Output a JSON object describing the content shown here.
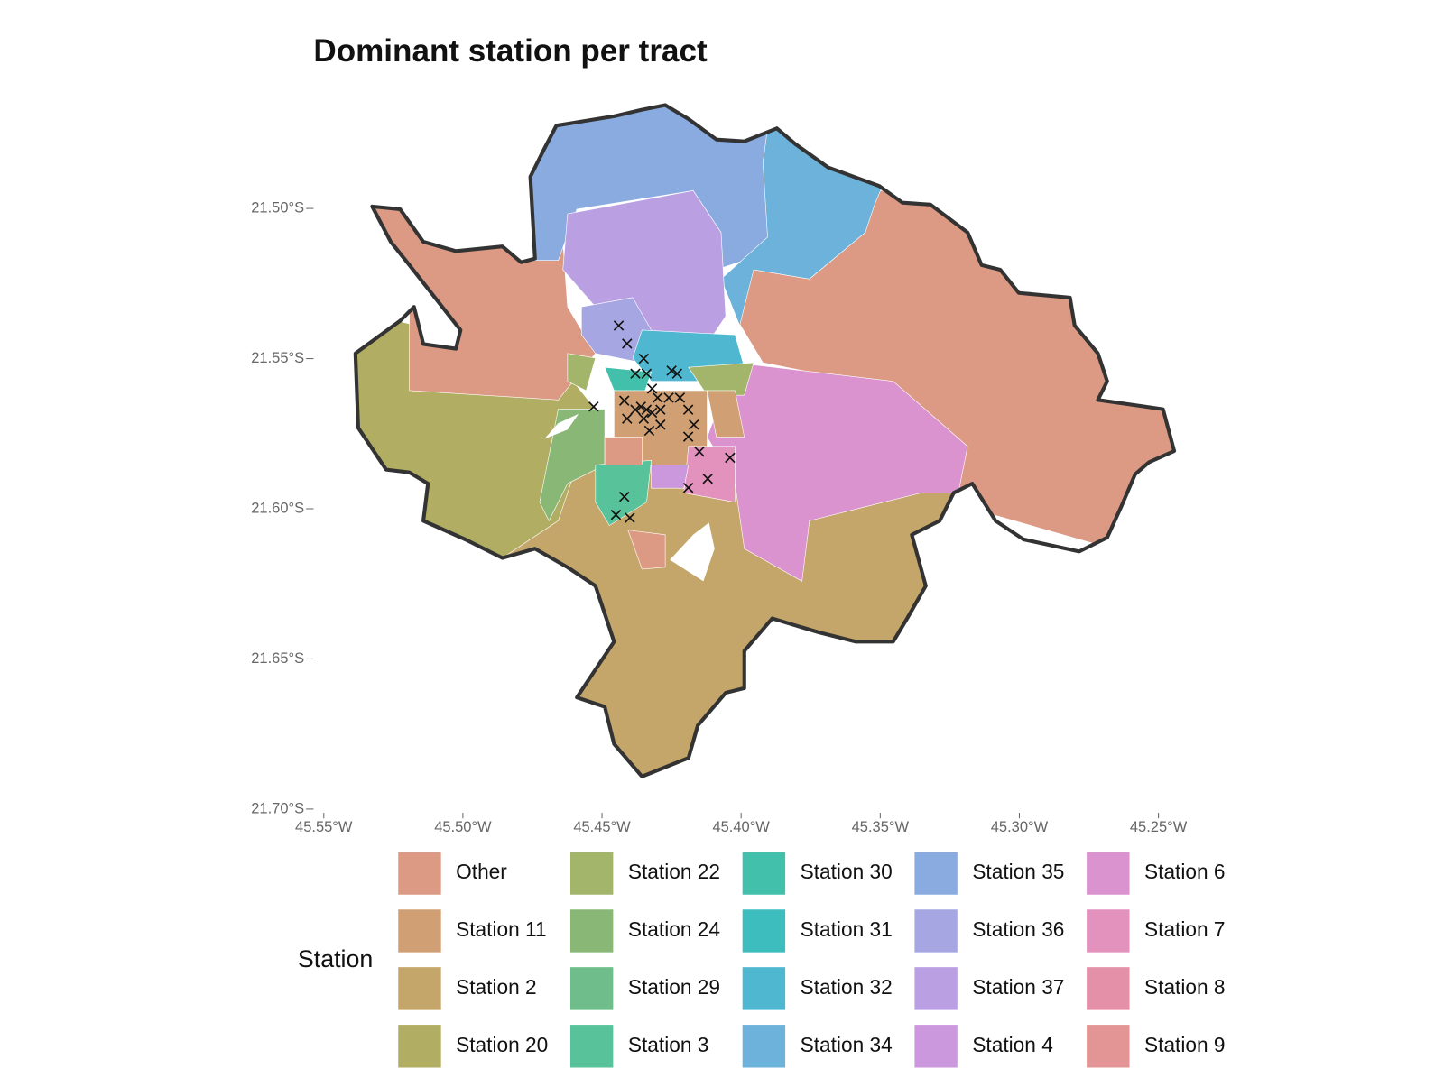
{
  "chart_data": {
    "type": "map",
    "title": "Dominant station per tract",
    "legend_title": "Station",
    "categories": [
      "Other",
      "Station 11",
      "Station 2",
      "Station 20",
      "Station 22",
      "Station 24",
      "Station 29",
      "Station 3",
      "Station 30",
      "Station 31",
      "Station 32",
      "Station 34",
      "Station 35",
      "Station 36",
      "Station 37",
      "Station 4",
      "Station 6",
      "Station 7",
      "Station 8",
      "Station 9"
    ],
    "colors": [
      "#dc9a85",
      "#d0a074",
      "#c4a66a",
      "#b1ad62",
      "#a3b56a",
      "#89b876",
      "#6fbd8a",
      "#58c39a",
      "#43c0ab",
      "#3ebdbe",
      "#4fb8d0",
      "#6cb2da",
      "#8aabdf",
      "#a6a7e2",
      "#baa0e2",
      "#cc98dd",
      "#da93ce",
      "#e292bd",
      "#e490a8",
      "#e29594"
    ],
    "xlim": [
      -45.55,
      -45.24
    ],
    "ylim": [
      -21.7,
      -21.46
    ],
    "xticks": [
      {
        "value": -45.55,
        "label": "45.55°W"
      },
      {
        "value": -45.5,
        "label": "45.50°W"
      },
      {
        "value": -45.45,
        "label": "45.45°W"
      },
      {
        "value": -45.4,
        "label": "45.40°W"
      },
      {
        "value": -45.35,
        "label": "45.35°W"
      },
      {
        "value": -45.3,
        "label": "45.30°W"
      },
      {
        "value": -45.25,
        "label": "45.25°W"
      }
    ],
    "yticks": [
      {
        "value": -21.5,
        "label": "21.50°S"
      },
      {
        "value": -21.55,
        "label": "21.55°S"
      },
      {
        "value": -21.6,
        "label": "21.60°S"
      },
      {
        "value": -21.65,
        "label": "21.65°S"
      },
      {
        "value": -21.7,
        "label": "21.70°S"
      }
    ],
    "points": {
      "x": [
        -45.444,
        -45.441,
        -45.435,
        -45.438,
        -45.434,
        -45.425,
        -45.423,
        -45.432,
        -45.43,
        -45.426,
        -45.422,
        -45.453,
        -45.442,
        -45.438,
        -45.436,
        -45.434,
        -45.432,
        -45.429,
        -45.441,
        -45.435,
        -45.429,
        -45.433,
        -45.419,
        -45.417,
        -45.419,
        -45.415,
        -45.404,
        -45.412,
        -45.419,
        -45.442,
        -45.445,
        -45.44
      ],
      "y": [
        -21.539,
        -21.545,
        -21.55,
        -21.555,
        -21.555,
        -21.554,
        -21.555,
        -21.56,
        -21.563,
        -21.563,
        -21.563,
        -21.566,
        -21.564,
        -21.567,
        -21.566,
        -21.567,
        -21.568,
        -21.567,
        -21.57,
        -21.57,
        -21.572,
        -21.574,
        -21.567,
        -21.572,
        -21.576,
        -21.581,
        -21.583,
        -21.59,
        -21.593,
        -21.596,
        -21.602,
        -21.603
      ]
    }
  }
}
